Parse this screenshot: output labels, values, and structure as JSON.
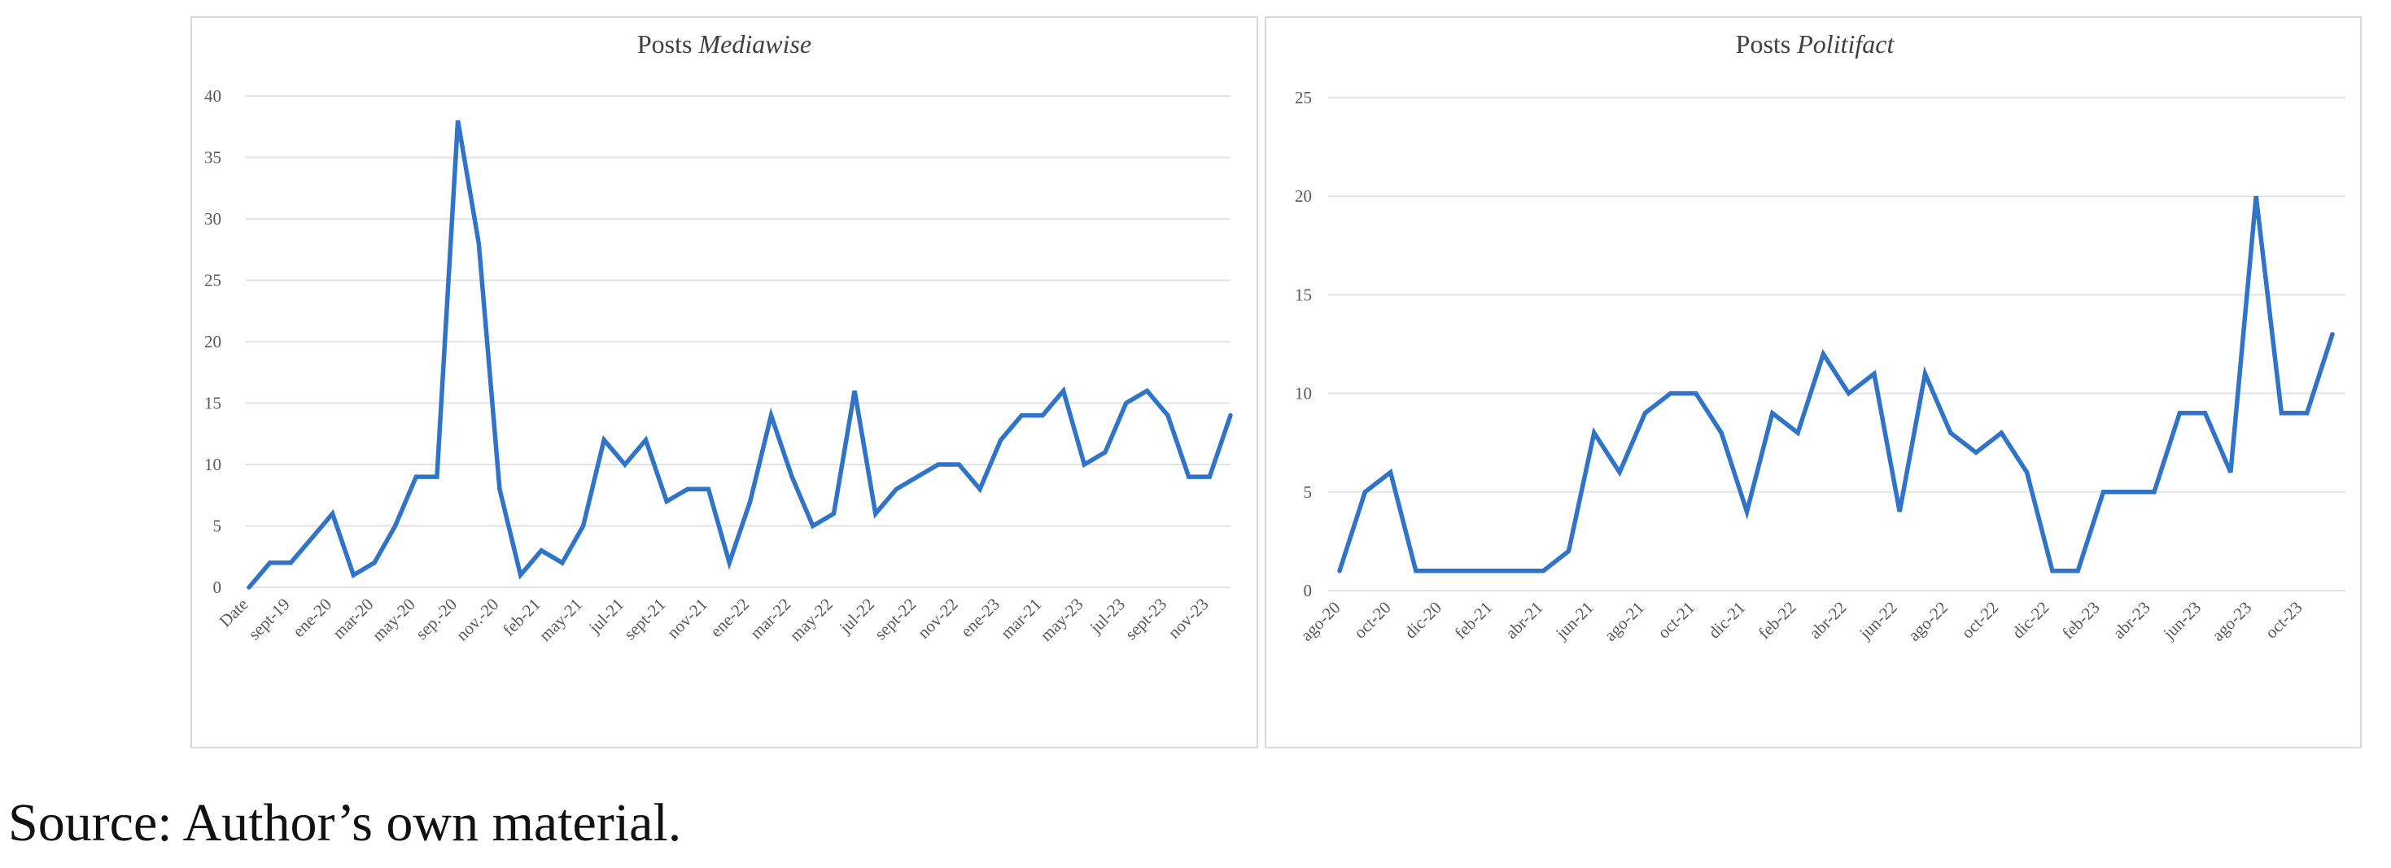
{
  "caption": "Source: Author’s own material.",
  "colors": {
    "line": "#2f74c9",
    "grid": "#e3e3e3",
    "border": "#d9d9d9",
    "text": "#595959"
  },
  "chart_data": [
    {
      "type": "line",
      "title": "Posts",
      "title_italic": "Mediawise",
      "xlabel": "",
      "ylabel": "",
      "ylim": [
        0,
        40
      ],
      "yticks": [
        0,
        5,
        10,
        15,
        20,
        25,
        30,
        35,
        40
      ],
      "grid": true,
      "legend": "none",
      "x_tick_labels": [
        "Date",
        "sept-19",
        "ene-20",
        "mar-20",
        "may-20",
        "sep.-20",
        "nov.-20",
        "feb-21",
        "may-21",
        "jul-21",
        "sept-21",
        "nov-21",
        "ene-22",
        "mar-22",
        "may-22",
        "jul-22",
        "sept-22",
        "nov-22",
        "ene-23",
        "mar-21",
        "may-23",
        "jul-23",
        "sept-23",
        "nov-23"
      ],
      "series": [
        {
          "values": [
            0,
            2,
            2,
            4,
            6,
            1,
            2,
            5,
            9,
            9,
            38,
            28,
            8,
            1,
            3,
            2,
            5,
            12,
            10,
            12,
            7,
            8,
            8,
            2,
            7,
            14,
            9,
            5,
            6,
            16,
            6,
            8,
            9,
            10,
            10,
            8,
            12,
            14,
            14,
            16,
            10,
            11,
            15,
            16,
            14,
            9,
            9,
            14
          ]
        }
      ]
    },
    {
      "type": "line",
      "title": "Posts",
      "title_italic": "Politifact",
      "xlabel": "",
      "ylabel": "",
      "ylim": [
        0,
        25
      ],
      "yticks": [
        0,
        5,
        10,
        15,
        20,
        25
      ],
      "grid": true,
      "legend": "none",
      "x_tick_labels": [
        "ago-20",
        "oct-20",
        "dic-20",
        "feb-21",
        "abr-21",
        "jun-21",
        "ago-21",
        "oct-21",
        "dic-21",
        "feb-22",
        "abr-22",
        "jun-22",
        "ago-22",
        "oct-22",
        "dic-22",
        "feb-23",
        "abr-23",
        "jun-23",
        "ago-23",
        "oct-23"
      ],
      "series": [
        {
          "values": [
            1,
            5,
            6,
            1,
            1,
            1,
            1,
            1,
            1,
            2,
            8,
            6,
            9,
            10,
            10,
            8,
            4,
            9,
            8,
            12,
            10,
            11,
            4,
            11,
            8,
            7,
            8,
            6,
            1,
            1,
            5,
            5,
            5,
            9,
            9,
            6,
            20,
            9,
            9,
            13
          ]
        }
      ]
    }
  ]
}
